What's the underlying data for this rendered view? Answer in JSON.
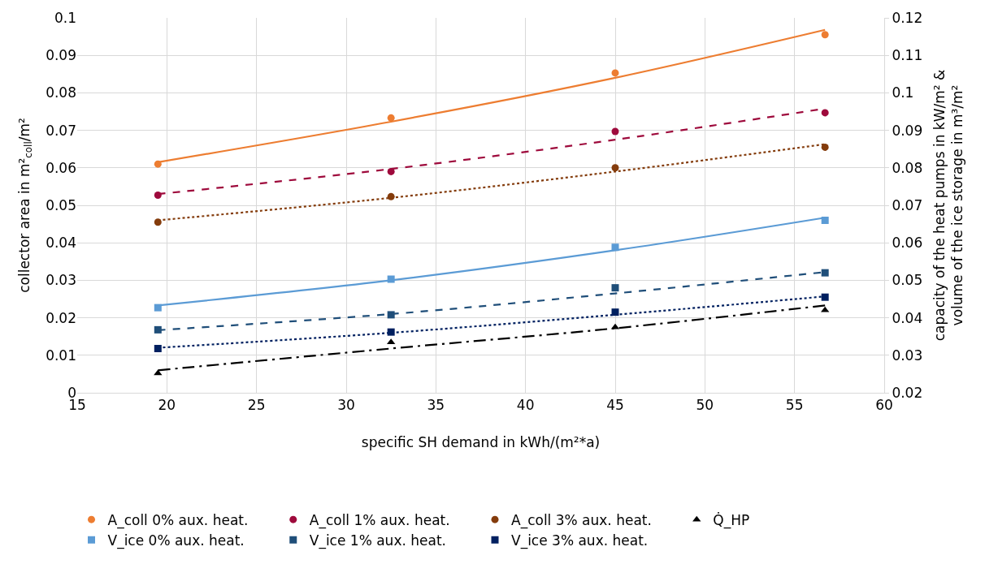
{
  "chart_data": {
    "type": "scatter",
    "xlabel": "specific SH demand in kWh/(m²*a)",
    "ylabel": "collector area in m²$_{coll}$/m²",
    "y2label": "capacity of the heat pumps in kW/m² &\nvolume of the ice storage in m³/m²",
    "xlim": [
      15,
      60
    ],
    "xticks": [
      15,
      20,
      25,
      30,
      35,
      40,
      45,
      50,
      55,
      60
    ],
    "ylim": [
      0,
      0.1
    ],
    "yticks": [
      0,
      0.01,
      0.02,
      0.03,
      0.04,
      0.05,
      0.06,
      0.07,
      0.08,
      0.09,
      0.1
    ],
    "y2lim": [
      0.02,
      0.12
    ],
    "y2ticks": [
      0.02,
      0.03,
      0.04,
      0.05,
      0.06,
      0.07,
      0.08,
      0.09,
      0.1,
      0.11,
      0.12
    ],
    "grid": true,
    "legend": "bottom",
    "series": [
      {
        "name": "A_coll 0% aux. heat.",
        "color": "#ed7d31",
        "marker": "circle",
        "x": [
          19.5,
          32.5,
          45,
          56.7
        ],
        "values": [
          0.061,
          0.0733,
          0.0853,
          0.0955
        ]
      },
      {
        "name": "A_coll 1% aux. heat.",
        "color": "#9e0a3c",
        "marker": "circle",
        "x": [
          19.5,
          32.5,
          45,
          56.7
        ],
        "values": [
          0.0527,
          0.059,
          0.0697,
          0.0747
        ]
      },
      {
        "name": "A_coll 3% aux. heat.",
        "color": "#843c0c",
        "marker": "circle",
        "x": [
          19.5,
          32.5,
          45,
          56.7
        ],
        "values": [
          0.0455,
          0.0523,
          0.06,
          0.0655
        ]
      },
      {
        "name": "Q̇_HP",
        "color": "#000000",
        "marker": "triangle",
        "axis": "y2",
        "x": [
          19.5,
          32.5,
          45,
          56.7
        ],
        "values": [
          0.0252,
          0.0335,
          0.0375,
          0.042
        ]
      },
      {
        "name": "V_ice 0% aux. heat.",
        "color": "#5b9bd5",
        "marker": "square",
        "axis": "y2",
        "x": [
          19.5,
          32.5,
          45,
          56.7
        ],
        "values": [
          0.0427,
          0.0503,
          0.0588,
          0.066
        ]
      },
      {
        "name": "V_ice 1% aux. heat.",
        "color": "#1f4e79",
        "marker": "square",
        "axis": "y2",
        "x": [
          19.5,
          32.5,
          45,
          56.7
        ],
        "values": [
          0.0368,
          0.0408,
          0.048,
          0.052
        ]
      },
      {
        "name": "V_ice 3% aux. heat.",
        "color": "#002060",
        "marker": "square",
        "axis": "y2",
        "x": [
          19.5,
          32.5,
          45,
          56.7
        ],
        "values": [
          0.0318,
          0.0362,
          0.0415,
          0.0455
        ]
      },
      {
        "type": "line",
        "color": "#ed7d31",
        "line_style": "solid",
        "marker": "none",
        "x": [
          19.5,
          32.5,
          45,
          56.7
        ],
        "values": [
          0.0615,
          0.0723,
          0.084,
          0.0968
        ]
      },
      {
        "type": "line",
        "color": "#9e0a3c",
        "line_style": "dashed",
        "marker": "none",
        "x": [
          19.5,
          32.5,
          45,
          56.7
        ],
        "values": [
          0.053,
          0.0597,
          0.0675,
          0.0758
        ]
      },
      {
        "type": "line",
        "color": "#843c0c",
        "line_style": "dotted",
        "marker": "none",
        "x": [
          19.5,
          32.5,
          45,
          56.7
        ],
        "values": [
          0.046,
          0.052,
          0.059,
          0.0663
        ]
      },
      {
        "type": "line",
        "color": "#000000",
        "line_style": "dashdot",
        "marker": "none",
        "axis": "y2",
        "x": [
          19.5,
          32.5,
          45,
          56.7
        ],
        "values": [
          0.026,
          0.0318,
          0.0372,
          0.0433
        ]
      },
      {
        "type": "line",
        "color": "#5b9bd5",
        "line_style": "solid",
        "marker": "none",
        "axis": "y2",
        "x": [
          19.5,
          32.5,
          45,
          56.7
        ],
        "values": [
          0.0433,
          0.05,
          0.058,
          0.0667
        ]
      },
      {
        "type": "line",
        "color": "#1f4e79",
        "line_style": "dashed",
        "marker": "none",
        "axis": "y2",
        "x": [
          19.5,
          32.5,
          45,
          56.7
        ],
        "values": [
          0.0367,
          0.041,
          0.0465,
          0.0522
        ]
      },
      {
        "type": "line",
        "color": "#002060",
        "line_style": "dotted",
        "marker": "none",
        "axis": "y2",
        "x": [
          19.5,
          32.5,
          45,
          56.7
        ],
        "values": [
          0.032,
          0.036,
          0.0408,
          0.0457
        ]
      }
    ]
  }
}
